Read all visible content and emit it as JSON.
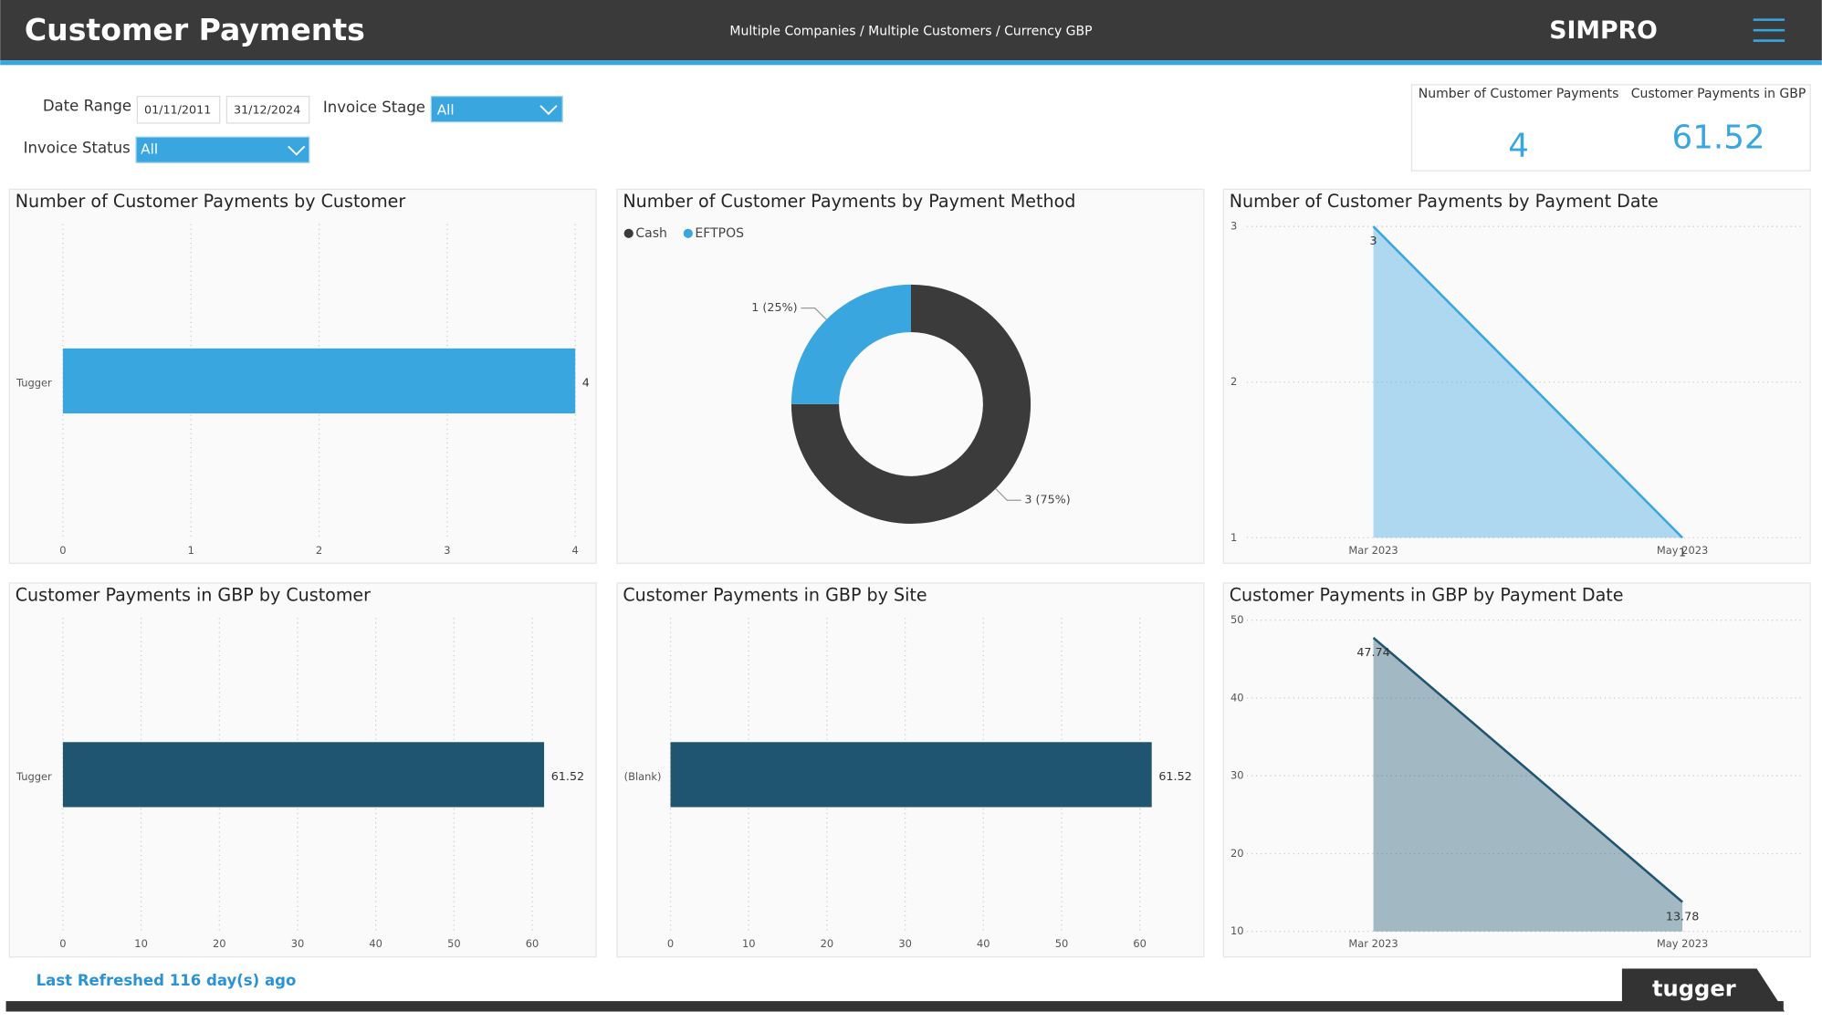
{
  "header": {
    "title": "Customer Payments",
    "subtitle": "Multiple Companies / Multiple Customers / Currency GBP",
    "logo": "SIMPRO"
  },
  "filters": {
    "date_range_label": "Date Range",
    "date_from": "01/11/2011",
    "date_to": "31/12/2024",
    "invoice_stage_label": "Invoice Stage",
    "invoice_stage": "All",
    "invoice_status_label": "Invoice Status",
    "invoice_status": "All"
  },
  "kpis": [
    {
      "label": "Number of Customer Payments",
      "value": 4
    },
    {
      "label": "Customer Payments in GBP",
      "value": 61.52
    }
  ],
  "footer": {
    "refreshed": "Last Refreshed 116 day(s) ago",
    "brand": "tugger"
  },
  "chart_data": [
    {
      "type": "bar",
      "title": "Number of Customer Payments by Customer",
      "orientation": "horizontal",
      "categories": [
        "Tugger"
      ],
      "values": [
        4
      ],
      "color": "#3aa6df",
      "xlim": [
        0,
        4
      ],
      "xticks": [
        0,
        1,
        2,
        3,
        4
      ],
      "grid": true
    },
    {
      "type": "pie",
      "title": "Number of Customer Payments by Payment Method",
      "categories": [
        "Cash",
        "EFTPOS"
      ],
      "values": [
        3,
        1
      ],
      "value_labels": [
        "3 (75%)",
        "1 (25%)"
      ],
      "colors": [
        "#3b3b3b",
        "#3aa6df"
      ],
      "donut": true,
      "legend": "top-left"
    },
    {
      "type": "area",
      "title": "Number of Customer Payments by Payment Date",
      "categories": [
        "Mar 2023",
        "May 2023"
      ],
      "values": [
        3,
        1
      ],
      "color": "#3aa6df",
      "ylim": [
        1,
        3
      ],
      "yticks": [
        1,
        2,
        3
      ],
      "grid": true
    },
    {
      "type": "bar",
      "title": "Customer Payments in GBP by Customer",
      "orientation": "horizontal",
      "categories": [
        "Tugger"
      ],
      "values": [
        61.52
      ],
      "color": "#1f5570",
      "xlim": [
        0,
        65.5
      ],
      "xticks": [
        0,
        10,
        20,
        30,
        40,
        50,
        60
      ],
      "grid": true
    },
    {
      "type": "bar",
      "title": "Customer Payments in GBP by Site",
      "orientation": "horizontal",
      "categories": [
        "(Blank)"
      ],
      "values": [
        61.52
      ],
      "color": "#1f5570",
      "xlim": [
        0,
        65.5
      ],
      "xticks": [
        0,
        10,
        20,
        30,
        40,
        50,
        60
      ],
      "grid": true
    },
    {
      "type": "area",
      "title": "Customer Payments in GBP by Payment Date",
      "categories": [
        "Mar 2023",
        "May 2023"
      ],
      "values": [
        47.74,
        13.78
      ],
      "color": "#1f5570",
      "ylim": [
        10,
        50
      ],
      "yticks": [
        10,
        20,
        30,
        40,
        50
      ],
      "grid": true
    }
  ]
}
